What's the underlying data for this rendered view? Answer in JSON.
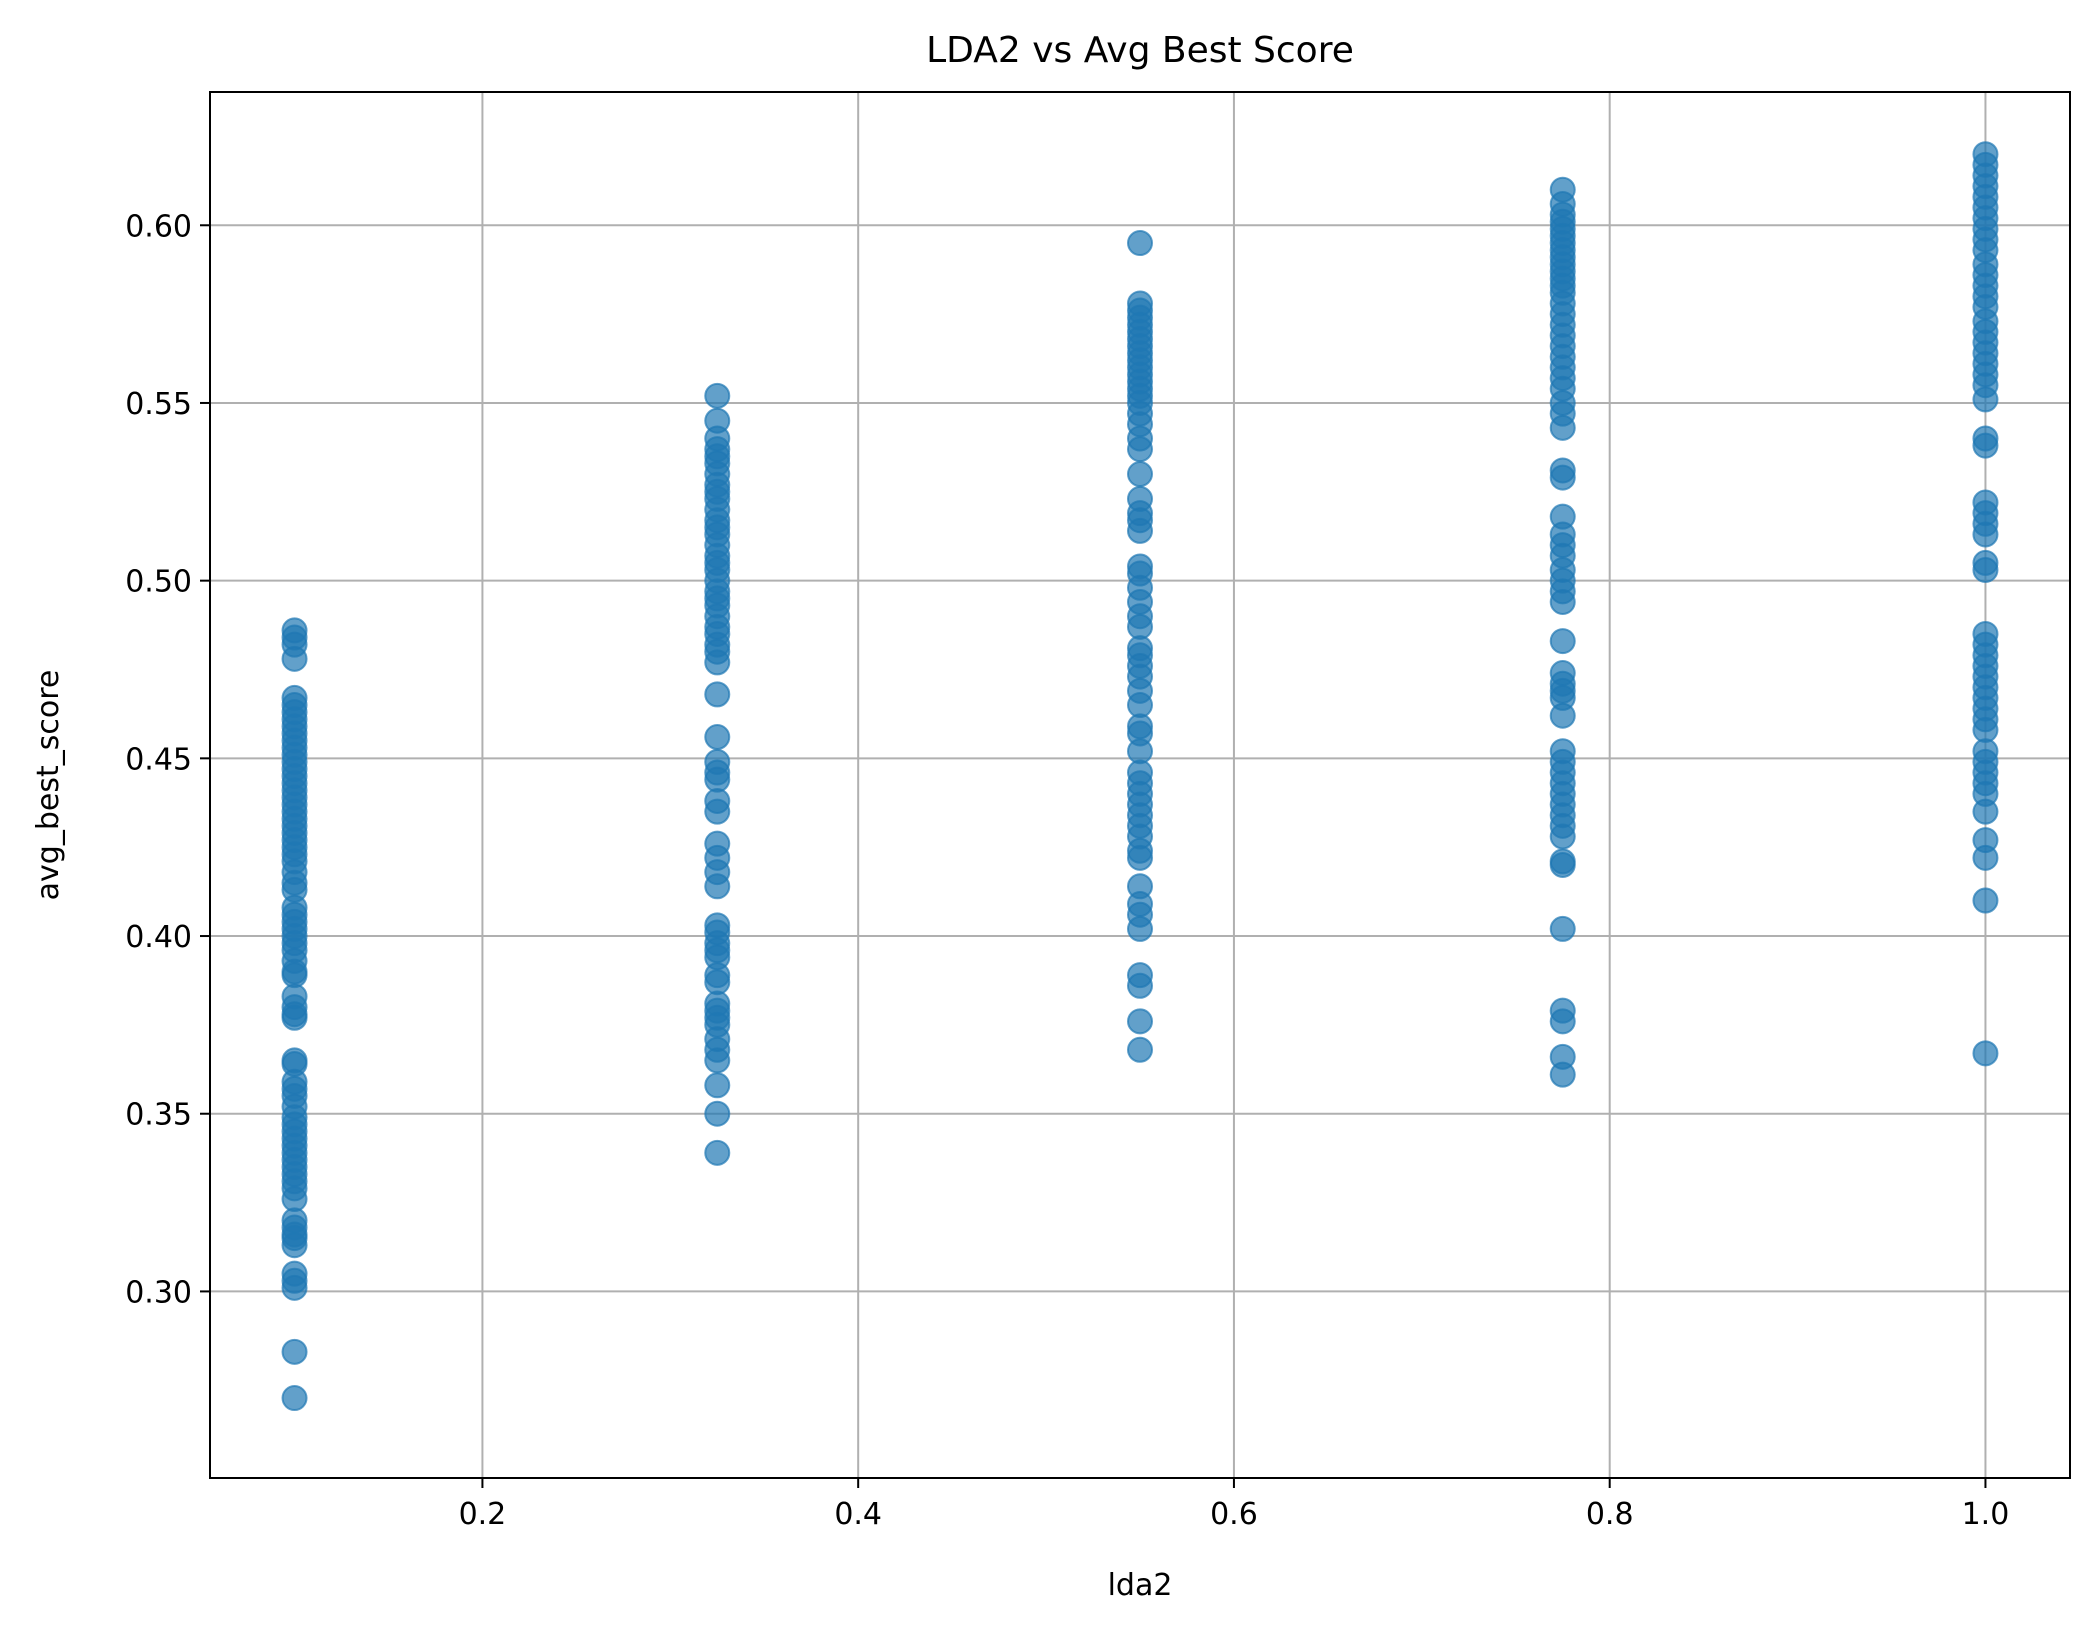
{
  "chart_data": {
    "type": "scatter",
    "title": "LDA2 vs Avg Best Score",
    "xlabel": "lda2",
    "ylabel": "avg_best_score",
    "xlim": [
      0.055,
      1.045
    ],
    "ylim": [
      0.2475,
      0.6375
    ],
    "xticks": [
      0.2,
      0.4,
      0.6,
      0.8,
      1.0
    ],
    "xtick_labels": [
      "0.2",
      "0.4",
      "0.6",
      "0.8",
      "1.0"
    ],
    "yticks": [
      0.3,
      0.35,
      0.4,
      0.45,
      0.5,
      0.55,
      0.6
    ],
    "ytick_labels": [
      "0.30",
      "0.35",
      "0.40",
      "0.45",
      "0.50",
      "0.55",
      "0.60"
    ],
    "grid": true,
    "legend": "none",
    "point_color": "#1f77b4",
    "point_alpha": 0.7,
    "series": [
      {
        "x": 0.1,
        "y": [
          0.486,
          0.484,
          0.482,
          0.478,
          0.467,
          0.465,
          0.463,
          0.461,
          0.459,
          0.457,
          0.455,
          0.453,
          0.451,
          0.449,
          0.447,
          0.445,
          0.443,
          0.441,
          0.439,
          0.437,
          0.435,
          0.433,
          0.431,
          0.429,
          0.427,
          0.425,
          0.423,
          0.421,
          0.418,
          0.415,
          0.413,
          0.408,
          0.406,
          0.404,
          0.402,
          0.4,
          0.398,
          0.396,
          0.393,
          0.39,
          0.389,
          0.383,
          0.38,
          0.378,
          0.377,
          0.365,
          0.364,
          0.359,
          0.357,
          0.355,
          0.352,
          0.349,
          0.347,
          0.345,
          0.343,
          0.341,
          0.339,
          0.337,
          0.335,
          0.333,
          0.331,
          0.329,
          0.326,
          0.32,
          0.318,
          0.316,
          0.315,
          0.313,
          0.305,
          0.303,
          0.301,
          0.283,
          0.27
        ]
      },
      {
        "x": 0.325,
        "y": [
          0.552,
          0.545,
          0.54,
          0.537,
          0.535,
          0.533,
          0.53,
          0.527,
          0.525,
          0.523,
          0.52,
          0.517,
          0.515,
          0.513,
          0.51,
          0.507,
          0.505,
          0.503,
          0.5,
          0.497,
          0.495,
          0.493,
          0.49,
          0.487,
          0.485,
          0.482,
          0.48,
          0.477,
          0.468,
          0.456,
          0.449,
          0.446,
          0.444,
          0.438,
          0.435,
          0.426,
          0.422,
          0.418,
          0.414,
          0.403,
          0.401,
          0.398,
          0.396,
          0.394,
          0.389,
          0.387,
          0.381,
          0.379,
          0.377,
          0.375,
          0.371,
          0.368,
          0.365,
          0.358,
          0.35,
          0.339
        ]
      },
      {
        "x": 0.55,
        "y": [
          0.595,
          0.578,
          0.576,
          0.574,
          0.572,
          0.57,
          0.568,
          0.566,
          0.564,
          0.562,
          0.56,
          0.558,
          0.556,
          0.554,
          0.552,
          0.55,
          0.547,
          0.544,
          0.54,
          0.537,
          0.53,
          0.523,
          0.519,
          0.517,
          0.514,
          0.504,
          0.502,
          0.498,
          0.494,
          0.49,
          0.487,
          0.481,
          0.479,
          0.476,
          0.473,
          0.469,
          0.465,
          0.459,
          0.457,
          0.452,
          0.446,
          0.443,
          0.44,
          0.437,
          0.434,
          0.431,
          0.428,
          0.424,
          0.422,
          0.414,
          0.409,
          0.406,
          0.402,
          0.389,
          0.386,
          0.376,
          0.368
        ]
      },
      {
        "x": 0.775,
        "y": [
          0.61,
          0.606,
          0.603,
          0.601,
          0.599,
          0.597,
          0.595,
          0.593,
          0.591,
          0.589,
          0.587,
          0.585,
          0.583,
          0.581,
          0.578,
          0.575,
          0.572,
          0.569,
          0.566,
          0.563,
          0.56,
          0.557,
          0.554,
          0.55,
          0.547,
          0.543,
          0.531,
          0.529,
          0.518,
          0.513,
          0.51,
          0.507,
          0.503,
          0.5,
          0.497,
          0.494,
          0.483,
          0.474,
          0.471,
          0.469,
          0.467,
          0.462,
          0.452,
          0.449,
          0.446,
          0.443,
          0.44,
          0.437,
          0.434,
          0.431,
          0.428,
          0.421,
          0.42,
          0.402,
          0.379,
          0.376,
          0.366,
          0.361
        ]
      },
      {
        "x": 1.0,
        "y": [
          0.62,
          0.617,
          0.614,
          0.611,
          0.608,
          0.605,
          0.602,
          0.599,
          0.596,
          0.593,
          0.589,
          0.586,
          0.583,
          0.58,
          0.577,
          0.573,
          0.57,
          0.567,
          0.564,
          0.561,
          0.558,
          0.555,
          0.551,
          0.54,
          0.538,
          0.522,
          0.519,
          0.516,
          0.513,
          0.505,
          0.503,
          0.485,
          0.482,
          0.479,
          0.476,
          0.473,
          0.47,
          0.467,
          0.464,
          0.461,
          0.458,
          0.452,
          0.449,
          0.446,
          0.443,
          0.44,
          0.435,
          0.427,
          0.422,
          0.41,
          0.367
        ]
      }
    ]
  }
}
